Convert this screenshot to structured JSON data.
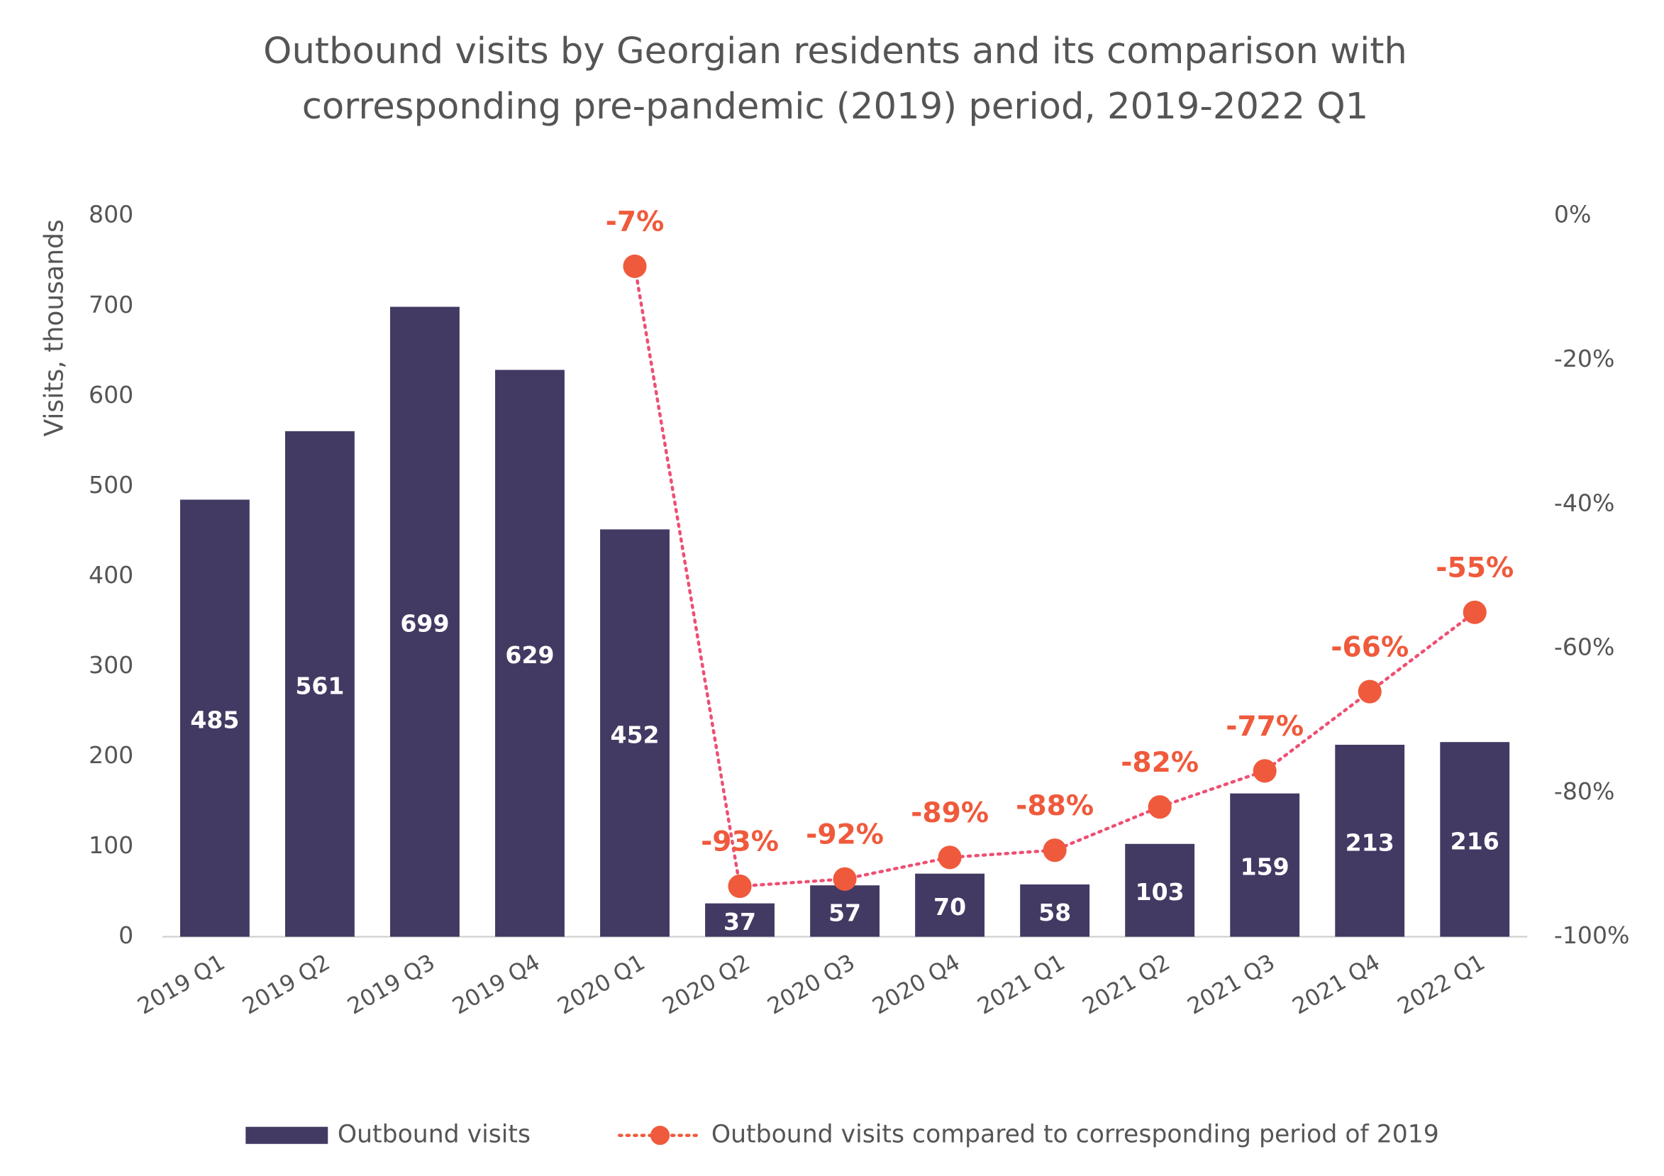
{
  "chart_data": {
    "type": "bar",
    "title": "Outbound visits by Georgian residents and its comparison with corresponding pre-pandemic (2019) period, 2019-2022 Q1",
    "ylabel": "Visits, thousands",
    "categories": [
      "2019 Q1",
      "2019 Q2",
      "2019 Q3",
      "2019 Q4",
      "2020 Q1",
      "2020 Q2",
      "2020 Q3",
      "2020 Q4",
      "2021 Q1",
      "2021 Q2",
      "2021 Q3",
      "2021 Q4",
      "2022 Q1"
    ],
    "series": [
      {
        "name": "Outbound visits",
        "type": "bar",
        "color": "#433a63",
        "values": [
          485,
          561,
          699,
          629,
          452,
          37,
          57,
          70,
          58,
          103,
          159,
          213,
          216
        ]
      },
      {
        "name": "Outbound visits compared to corresponding period of 2019",
        "type": "line",
        "axis": "y2",
        "color": "#ef5a3c",
        "values": [
          null,
          null,
          null,
          null,
          -7,
          -93,
          -92,
          -89,
          -88,
          -82,
          -77,
          -66,
          -55
        ],
        "value_labels": [
          null,
          null,
          null,
          null,
          "-7%",
          "-93%",
          "-92%",
          "-89%",
          "-88%",
          "-82%",
          "-77%",
          "-66%",
          "-55%"
        ]
      }
    ],
    "ylim": [
      0,
      800
    ],
    "yticks": [
      0,
      100,
      200,
      300,
      400,
      500,
      600,
      700,
      800
    ],
    "y2lim": [
      -100,
      0
    ],
    "y2ticks": [
      {
        "value": 0,
        "label": "0%"
      },
      {
        "value": -20,
        "label": "-20%"
      },
      {
        "value": -40,
        "label": "-40%"
      },
      {
        "value": -60,
        "label": "-60%"
      },
      {
        "value": -80,
        "label": "-80%"
      },
      {
        "value": -100,
        "label": "-100%"
      }
    ],
    "legend": "bottom"
  }
}
